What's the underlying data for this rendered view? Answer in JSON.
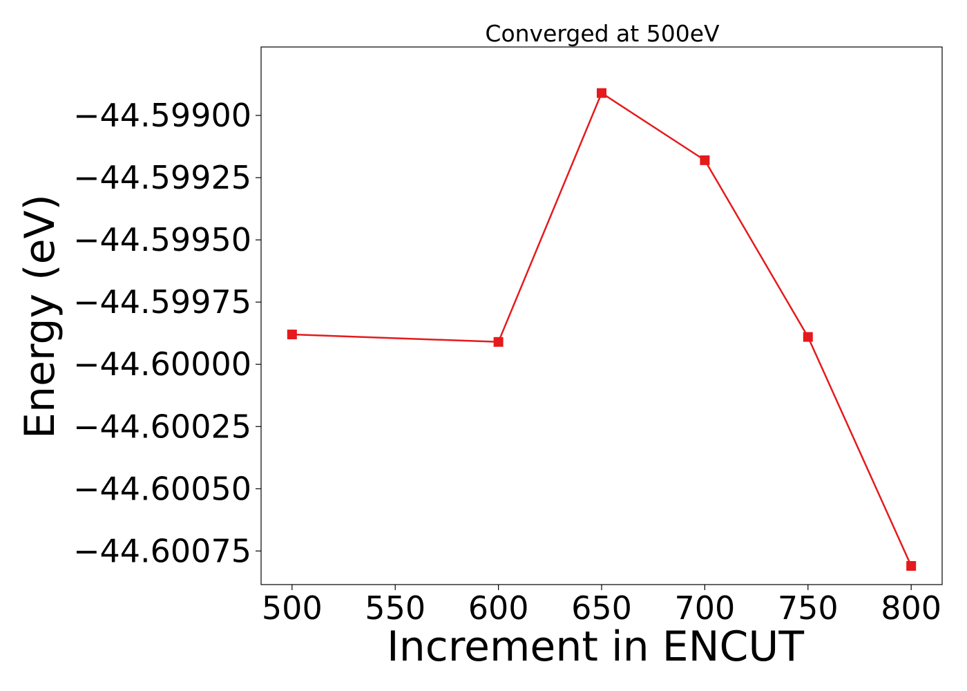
{
  "chart_data": {
    "type": "line",
    "title": "Converged at 500eV",
    "xlabel": "Increment in ENCUT",
    "ylabel": "Energy (eV)",
    "xlim": [
      485,
      815
    ],
    "ylim": [
      -44.600885,
      -44.598725
    ],
    "x_ticks": [
      500,
      550,
      600,
      650,
      700,
      750,
      800
    ],
    "x_tick_labels": [
      "500",
      "550",
      "600",
      "650",
      "700",
      "750",
      "800"
    ],
    "y_ticks": [
      -44.599,
      -44.59925,
      -44.5995,
      -44.59975,
      -44.6,
      -44.60025,
      -44.6005,
      -44.60075
    ],
    "y_tick_labels": [
      "−44.59900",
      "−44.59925",
      "−44.59950",
      "−44.59975",
      "−44.60000",
      "−44.60025",
      "−44.60050",
      "−44.60075"
    ],
    "grid": false,
    "series": [
      {
        "color": "#e41a1c",
        "marker": "square",
        "x": [
          500,
          600,
          650,
          700,
          750,
          800
        ],
        "y": [
          -44.59988,
          -44.59991,
          -44.59891,
          -44.59918,
          -44.59989,
          -44.60081
        ]
      }
    ]
  }
}
